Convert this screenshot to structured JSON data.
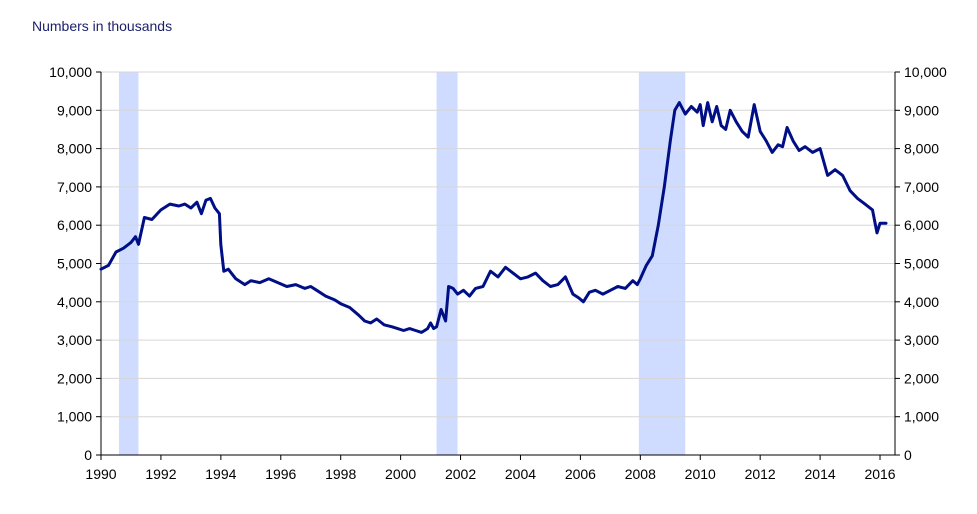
{
  "chart_data": {
    "type": "line",
    "unit_label": "Numbers in thousands",
    "ylim": [
      0,
      10000
    ],
    "xlim": [
      1990,
      2016.5
    ],
    "y_ticks": [
      "0",
      "1,000",
      "2,000",
      "3,000",
      "4,000",
      "5,000",
      "6,000",
      "7,000",
      "8,000",
      "9,000",
      "10,000"
    ],
    "x_ticks": [
      "1990",
      "1992",
      "1994",
      "1996",
      "1998",
      "2000",
      "2002",
      "2004",
      "2006",
      "2008",
      "2010",
      "2012",
      "2014",
      "2016"
    ],
    "grid": true,
    "recessions": [
      [
        1990.6,
        1991.25
      ],
      [
        2001.2,
        2001.9
      ],
      [
        2007.95,
        2009.5
      ]
    ],
    "colors": {
      "line": "#000f85",
      "recession": "#cfdcff",
      "grid": "#d6d6d6",
      "axis": "#000000",
      "unit_label": "#1b1f6b"
    },
    "series": [
      {
        "x": [
          1990.0,
          1990.25,
          1990.5,
          1990.75,
          1991.0,
          1991.15,
          1991.25,
          1991.45,
          1991.7,
          1992.0,
          1992.3,
          1992.6,
          1992.8,
          1993.0,
          1993.2,
          1993.35,
          1993.5,
          1993.65,
          1993.8,
          1993.95,
          1994.0,
          1994.1,
          1994.25,
          1994.5,
          1994.8,
          1995.0,
          1995.3,
          1995.6,
          1995.9,
          1996.2,
          1996.5,
          1996.8,
          1997.0,
          1997.2,
          1997.5,
          1997.8,
          1998.0,
          1998.3,
          1998.6,
          1998.8,
          1999.0,
          1999.2,
          1999.45,
          1999.7,
          1999.9,
          2000.1,
          2000.3,
          2000.5,
          2000.7,
          2000.9,
          2001.0,
          2001.1,
          2001.2,
          2001.35,
          2001.5,
          2001.6,
          2001.75,
          2001.9,
          2002.1,
          2002.3,
          2002.5,
          2002.75,
          2003.0,
          2003.25,
          2003.5,
          2003.75,
          2004.0,
          2004.25,
          2004.5,
          2004.75,
          2005.0,
          2005.25,
          2005.5,
          2005.75,
          2005.95,
          2006.1,
          2006.3,
          2006.5,
          2006.75,
          2007.0,
          2007.25,
          2007.5,
          2007.75,
          2007.9,
          2008.0,
          2008.2,
          2008.4,
          2008.6,
          2008.8,
          2009.0,
          2009.15,
          2009.3,
          2009.5,
          2009.7,
          2009.9,
          2010.0,
          2010.1,
          2010.25,
          2010.4,
          2010.55,
          2010.7,
          2010.85,
          2011.0,
          2011.2,
          2011.4,
          2011.6,
          2011.8,
          2012.0,
          2012.2,
          2012.4,
          2012.6,
          2012.75,
          2012.9,
          2013.1,
          2013.3,
          2013.5,
          2013.75,
          2014.0,
          2014.25,
          2014.5,
          2014.75,
          2015.0,
          2015.25,
          2015.5,
          2015.75,
          2015.9,
          2016.0,
          2016.2
        ],
        "y": [
          4850,
          4950,
          5300,
          5400,
          5550,
          5700,
          5500,
          6200,
          6150,
          6400,
          6550,
          6500,
          6550,
          6450,
          6600,
          6300,
          6650,
          6700,
          6450,
          6300,
          5500,
          4800,
          4850,
          4600,
          4450,
          4550,
          4500,
          4600,
          4500,
          4400,
          4450,
          4350,
          4400,
          4300,
          4150,
          4050,
          3950,
          3850,
          3650,
          3500,
          3450,
          3550,
          3400,
          3350,
          3300,
          3250,
          3300,
          3250,
          3200,
          3300,
          3450,
          3300,
          3350,
          3800,
          3500,
          4400,
          4350,
          4200,
          4300,
          4150,
          4350,
          4400,
          4800,
          4650,
          4900,
          4750,
          4600,
          4650,
          4750,
          4550,
          4400,
          4450,
          4650,
          4200,
          4100,
          4000,
          4250,
          4300,
          4200,
          4300,
          4400,
          4350,
          4550,
          4450,
          4600,
          4950,
          5200,
          6000,
          7000,
          8200,
          9000,
          9200,
          8900,
          9100,
          8950,
          9150,
          8600,
          9200,
          8700,
          9100,
          8600,
          8500,
          9000,
          8700,
          8450,
          8300,
          9150,
          8450,
          8200,
          7900,
          8100,
          8050,
          8550,
          8200,
          7950,
          8050,
          7900,
          8000,
          7300,
          7450,
          7300,
          6900,
          6700,
          6550,
          6400,
          5800,
          6050,
          6050
        ]
      }
    ]
  }
}
